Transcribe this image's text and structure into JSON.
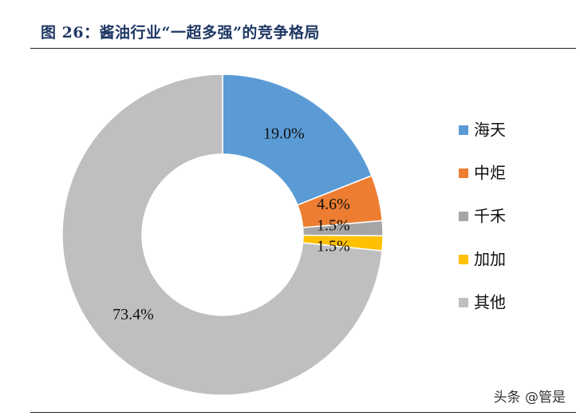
{
  "title": "图 26：酱油行业“一超多强”的竞争格局",
  "watermark": "头条 @管是",
  "chart_data": {
    "type": "pie",
    "donut": true,
    "title": "图 26：酱油行业“一超多强”的竞争格局",
    "legend_position": "right",
    "series": [
      {
        "name": "海天",
        "value": 19.0,
        "label": "19.0%",
        "color": "#5b9bd5"
      },
      {
        "name": "中炬",
        "value": 4.6,
        "label": "4.6%",
        "color": "#ed7d31"
      },
      {
        "name": "千禾",
        "value": 1.5,
        "label": "1.5%",
        "color": "#a5a5a5"
      },
      {
        "name": "加加",
        "value": 1.5,
        "label": "1.5%",
        "color": "#ffc000"
      },
      {
        "name": "其他",
        "value": 73.4,
        "label": "73.4%",
        "color": "#bfbfbf"
      }
    ]
  }
}
